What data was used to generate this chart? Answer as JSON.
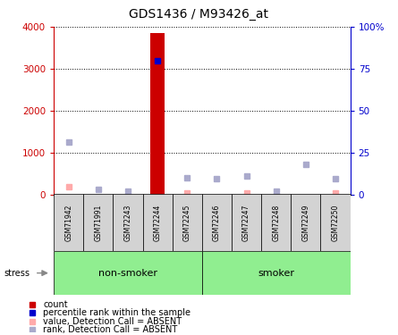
{
  "title": "GDS1436 / M93426_at",
  "samples": [
    "GSM71942",
    "GSM71991",
    "GSM72243",
    "GSM72244",
    "GSM72245",
    "GSM72246",
    "GSM72247",
    "GSM72248",
    "GSM72249",
    "GSM72250"
  ],
  "non_smoker_indices": [
    0,
    1,
    2,
    3,
    4
  ],
  "smoker_indices": [
    5,
    6,
    7,
    8,
    9
  ],
  "count_values": [
    0,
    0,
    0,
    3850,
    0,
    0,
    0,
    0,
    0,
    0
  ],
  "rank_values_primary": [
    0,
    0,
    0,
    3200,
    0,
    0,
    0,
    0,
    0,
    0
  ],
  "absent_value_values": [
    180,
    0,
    0,
    0,
    30,
    0,
    40,
    0,
    0,
    30
  ],
  "absent_rank_values": [
    1250,
    120,
    80,
    0,
    400,
    380,
    430,
    80,
    720,
    380
  ],
  "ylim": [
    0,
    4000
  ],
  "y2lim": [
    0,
    100
  ],
  "yticks": [
    0,
    1000,
    2000,
    3000,
    4000
  ],
  "y2ticks": [
    0,
    25,
    50,
    75,
    100
  ],
  "ytick_labels": [
    "0",
    "1000",
    "2000",
    "3000",
    "4000"
  ],
  "y2tick_labels": [
    "0",
    "25",
    "50",
    "75",
    "100%"
  ],
  "color_count": "#cc0000",
  "color_rank": "#0000cc",
  "color_absent_value": "#ffaaaa",
  "color_absent_rank": "#aaaacc",
  "group_color": "#90ee90",
  "bar_bg_color": "#d3d3d3",
  "legend_items": [
    {
      "label": "count",
      "color": "#cc0000"
    },
    {
      "label": "percentile rank within the sample",
      "color": "#0000cc"
    },
    {
      "label": "value, Detection Call = ABSENT",
      "color": "#ffaaaa"
    },
    {
      "label": "rank, Detection Call = ABSENT",
      "color": "#aaaacc"
    }
  ]
}
